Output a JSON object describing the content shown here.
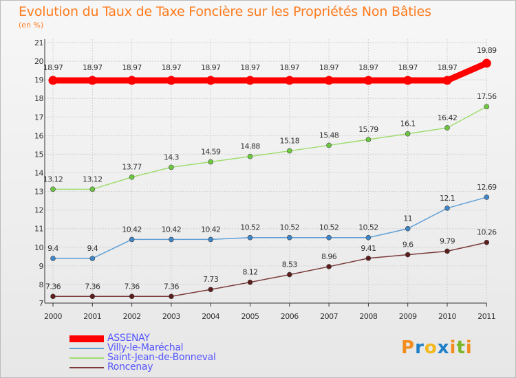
{
  "chart_data": {
    "type": "line",
    "title": "Evolution du Taux de Taxe Foncière sur les Propriétés Non Bâties",
    "ylabel": "(en %)",
    "xlabel": "",
    "categories": [
      "2000",
      "2001",
      "2002",
      "2003",
      "2004",
      "2005",
      "2006",
      "2007",
      "2008",
      "2009",
      "2010",
      "2011"
    ],
    "ylim": [
      7,
      21
    ],
    "yticks": [
      7,
      8,
      9,
      10,
      11,
      12,
      13,
      14,
      15,
      16,
      17,
      18,
      19,
      20,
      21
    ],
    "grid": true,
    "legend_position": "bottom-left",
    "series": [
      {
        "name": "ASSENAY",
        "color": "#ff0000",
        "emphasis": true,
        "values": [
          18.97,
          18.97,
          18.97,
          18.97,
          18.97,
          18.97,
          18.97,
          18.97,
          18.97,
          18.97,
          18.97,
          19.89
        ],
        "labels": [
          "18.97",
          "18.97",
          "18.97",
          "18.97",
          "18.97",
          "18.97",
          "18.97",
          "18.97",
          "18.97",
          "18.97",
          "18.97",
          "19.89"
        ]
      },
      {
        "name": "Villy-le-Maréchal",
        "color": "#5f9fd6",
        "point_color": "#3f86c8",
        "emphasis": false,
        "values": [
          9.4,
          9.4,
          10.42,
          10.42,
          10.42,
          10.52,
          10.52,
          10.52,
          10.52,
          11,
          12.1,
          12.69
        ],
        "labels": [
          "9.4",
          "9.4",
          "10.42",
          "10.42",
          "10.42",
          "10.52",
          "10.52",
          "10.52",
          "10.52",
          "11",
          "12.1",
          "12.69"
        ]
      },
      {
        "name": "Saint-Jean-de-Bonneval",
        "color": "#9edd6e",
        "point_color": "#6cc93f",
        "emphasis": false,
        "values": [
          13.12,
          13.12,
          13.77,
          14.3,
          14.59,
          14.88,
          15.18,
          15.48,
          15.79,
          16.1,
          16.42,
          17.56
        ],
        "labels": [
          "13.12",
          "13.12",
          "13.77",
          "14.3",
          "14.59",
          "14.88",
          "15.18",
          "15.48",
          "15.79",
          "16.1",
          "16.42",
          "17.56"
        ]
      },
      {
        "name": "Roncenay",
        "color": "#7a3a3a",
        "point_color": "#5c1d1d",
        "emphasis": false,
        "values": [
          7.36,
          7.36,
          7.36,
          7.36,
          7.73,
          8.12,
          8.53,
          8.96,
          9.41,
          9.6,
          9.79,
          10.26
        ],
        "labels": [
          "7.36",
          "7.36",
          "7.36",
          "7.36",
          "7.73",
          "8.12",
          "8.53",
          "8.96",
          "9.41",
          "9.6",
          "9.79",
          "10.26"
        ]
      }
    ]
  },
  "legend_text_color": "#5555ff",
  "logo": {
    "letters": [
      "P",
      "r",
      "o",
      "x",
      "i",
      "t",
      "i"
    ],
    "colors": [
      "#f28c1e",
      "#1e7ec8",
      "#f2b81e",
      "#1e7ec8",
      "#f28c1e",
      "#79b728",
      "#f28c1e"
    ]
  }
}
